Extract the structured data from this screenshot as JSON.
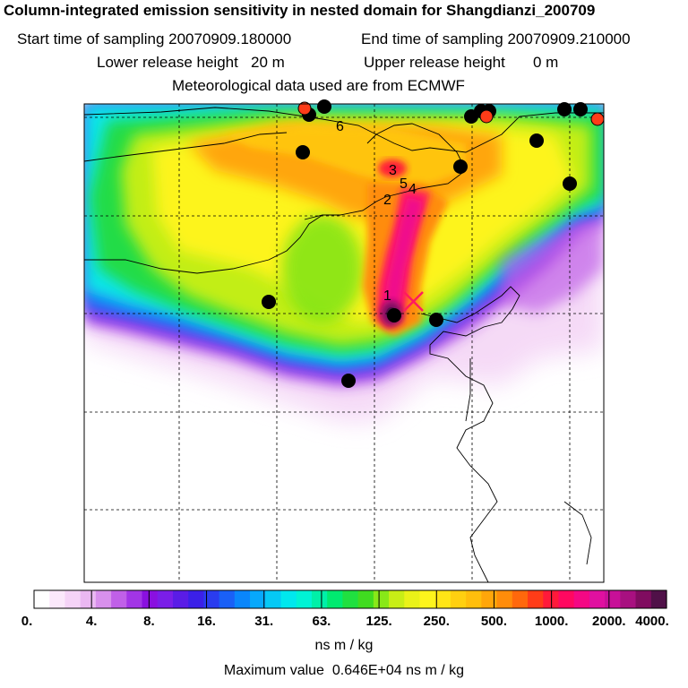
{
  "header": {
    "title": "Column-integrated emission sensitivity in nested domain for Shangdianzi_200709",
    "start_label": "Start time of sampling 20070909.180000",
    "end_label": "End time of sampling 20070909.210000",
    "lower_label": "Lower release height",
    "lower_value": "20 m",
    "upper_label": "Upper release height",
    "upper_value": "0 m",
    "met_label": "Meteorological data used are from ECMWF"
  },
  "map": {
    "trajectory_labels": [
      "1",
      "2",
      "3",
      "4",
      "5",
      "6"
    ],
    "release_marker": "cross"
  },
  "colorbar": {
    "tick_labels": [
      "0.",
      "4.",
      "8.",
      "16.",
      "31.",
      "63.",
      "125.",
      "250.",
      "500.",
      "1000.",
      "2000.",
      "4000."
    ],
    "units": "ns m / kg",
    "colors": [
      "#ffffff",
      "#fbe8fb",
      "#f5d3f7",
      "#eab8f2",
      "#d890ec",
      "#c060e8",
      "#a235e6",
      "#8a10e0",
      "#7a1ee8",
      "#5a1ce6",
      "#3b20e8",
      "#2a3cef",
      "#1a60f6",
      "#0a86fb",
      "#07a8fb",
      "#05c9f5",
      "#00e8ee",
      "#00f3d5",
      "#00f0a8",
      "#00ea70",
      "#20e040",
      "#40dc20",
      "#88e818",
      "#c8ee16",
      "#eaf218",
      "#fdf41c",
      "#ffe516",
      "#ffd010",
      "#ffbe0c",
      "#ffa60a",
      "#ff8c0a",
      "#ff680c",
      "#ff3c18",
      "#ff1a3a",
      "#ff0860",
      "#f40884",
      "#e010a0",
      "#c81098",
      "#a81080",
      "#800c60",
      "#501048"
    ]
  },
  "maximum": {
    "label": "Maximum value",
    "value": "0.646E+04",
    "units": "ns m / kg"
  }
}
